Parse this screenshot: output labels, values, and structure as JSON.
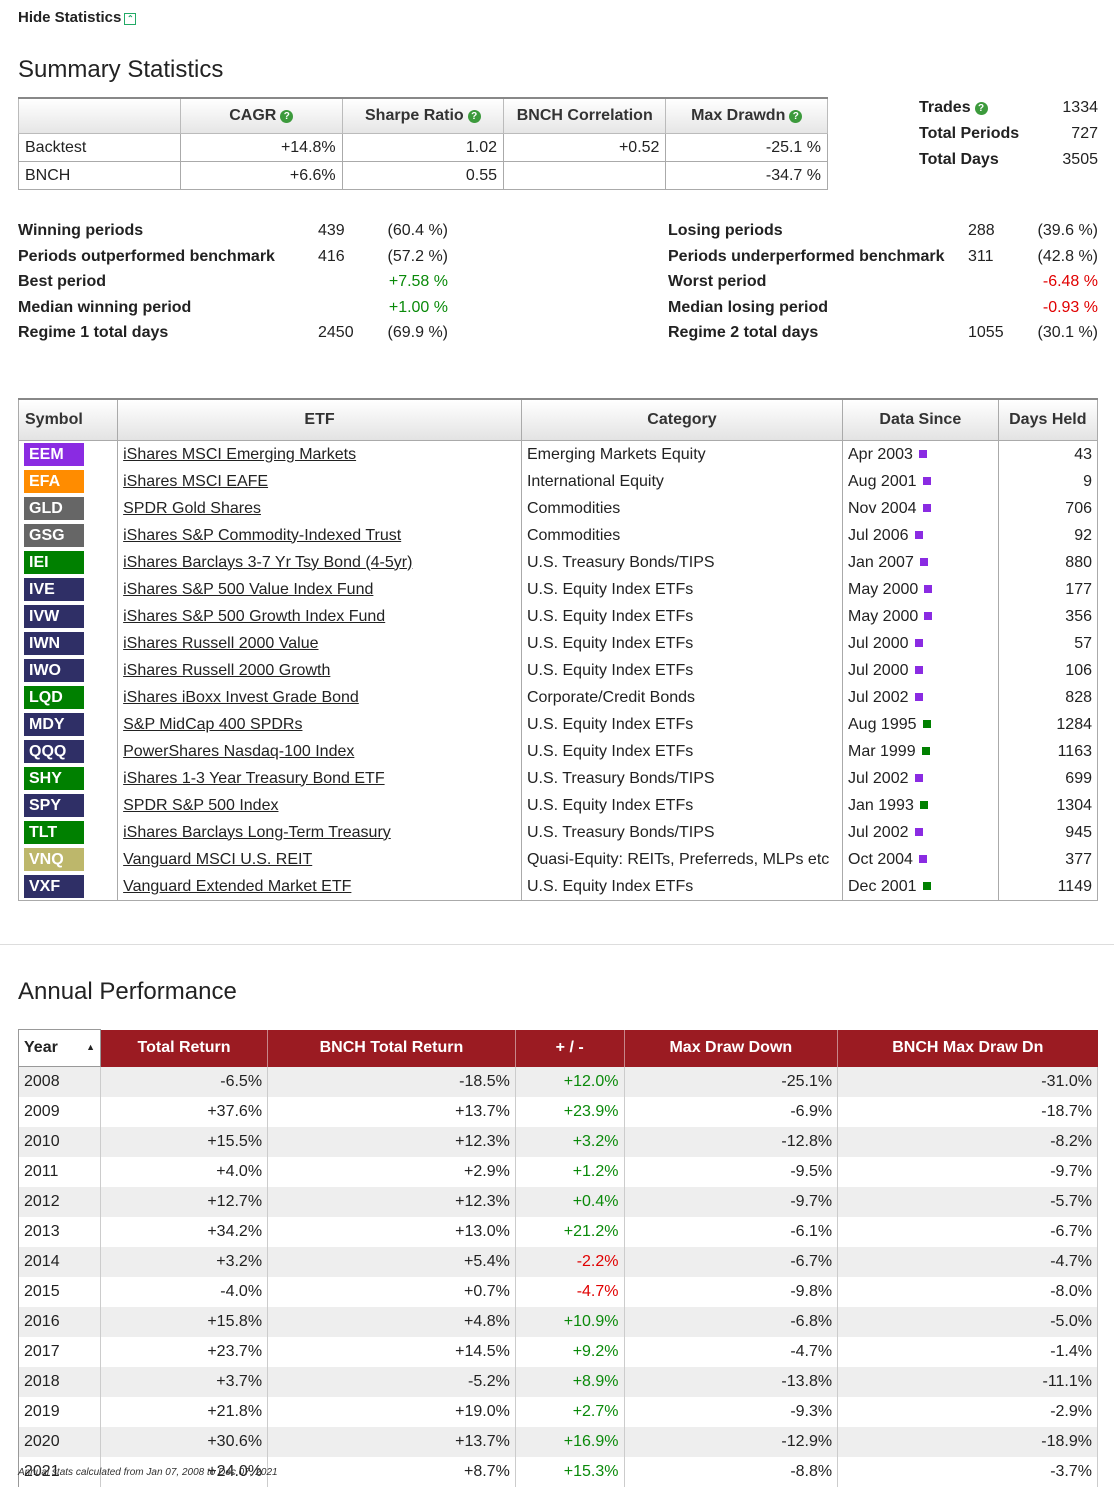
{
  "toggle_label": "Hide Statistics",
  "summary_title": "Summary Statistics",
  "summary_table": {
    "headers": [
      "",
      "CAGR",
      "Sharpe Ratio",
      "BNCH Correlation",
      "Max Drawdn"
    ],
    "rows": [
      [
        "Backtest",
        "+14.8%",
        "1.02",
        "+0.52",
        "-25.1 %"
      ],
      [
        "BNCH",
        "+6.6%",
        "0.55",
        "",
        "-34.7 %"
      ]
    ]
  },
  "side_stats": [
    {
      "label": "Trades",
      "value": "1334",
      "help": true
    },
    {
      "label": "Total Periods",
      "value": "727",
      "help": false
    },
    {
      "label": "Total Days",
      "value": "3505",
      "help": false
    }
  ],
  "left_stats": [
    {
      "label": "Winning periods",
      "value": "439",
      "pct": "(60.4 %)"
    },
    {
      "label": "Periods outperformed benchmark",
      "value": "416",
      "pct": "(57.2 %)"
    },
    {
      "label": "Best period",
      "value": "",
      "pct": "+7.58 %"
    },
    {
      "label": "Median winning period",
      "value": "",
      "pct": "+1.00 %"
    },
    {
      "label": "Regime 1 total days",
      "value": "2450",
      "pct": "(69.9 %)"
    }
  ],
  "right_stats": [
    {
      "label": "Losing periods",
      "value": "288",
      "pct": "(39.6 %)"
    },
    {
      "label": "Periods underperformed benchmark",
      "value": "311",
      "pct": "(42.8 %)"
    },
    {
      "label": "Worst period",
      "value": "",
      "pct": "-6.48 %"
    },
    {
      "label": "Median losing period",
      "value": "",
      "pct": "-0.93 %"
    },
    {
      "label": "Regime 2 total days",
      "value": "1055",
      "pct": "(30.1 %)"
    }
  ],
  "etf_table": {
    "headers": [
      "Symbol",
      "ETF",
      "Category",
      "Data Since",
      "Days Held"
    ],
    "rows": [
      {
        "symbol": "EEM",
        "color": "#8a2be2",
        "name": "iShares MSCI Emerging Markets",
        "category": "Emerging Markets Equity",
        "since": "Apr 2003",
        "marker": "#8a2be2",
        "days": "43"
      },
      {
        "symbol": "EFA",
        "color": "#ff8c00",
        "name": "iShares MSCI EAFE",
        "category": "International Equity",
        "since": "Aug 2001",
        "marker": "#8a2be2",
        "days": "9"
      },
      {
        "symbol": "GLD",
        "color": "#666666",
        "name": "SPDR Gold Shares",
        "category": "Commodities",
        "since": "Nov 2004",
        "marker": "#8a2be2",
        "days": "706"
      },
      {
        "symbol": "GSG",
        "color": "#666666",
        "name": "iShares S&P Commodity-Indexed Trust",
        "category": "Commodities",
        "since": "Jul 2006",
        "marker": "#8a2be2",
        "days": "92"
      },
      {
        "symbol": "IEI",
        "color": "#008000",
        "name": "iShares Barclays 3-7 Yr Tsy Bond (4-5yr)",
        "category": "U.S. Treasury Bonds/TIPS",
        "since": "Jan 2007",
        "marker": "#8a2be2",
        "days": "880"
      },
      {
        "symbol": "IVE",
        "color": "#2f2f66",
        "name": "iShares S&P 500 Value Index Fund",
        "category": "U.S. Equity Index ETFs",
        "since": "May 2000",
        "marker": "#8a2be2",
        "days": "177"
      },
      {
        "symbol": "IVW",
        "color": "#2f2f66",
        "name": "iShares S&P 500 Growth Index Fund",
        "category": "U.S. Equity Index ETFs",
        "since": "May 2000",
        "marker": "#8a2be2",
        "days": "356"
      },
      {
        "symbol": "IWN",
        "color": "#2f2f66",
        "name": "iShares Russell 2000 Value",
        "category": "U.S. Equity Index ETFs",
        "since": "Jul 2000",
        "marker": "#8a2be2",
        "days": "57"
      },
      {
        "symbol": "IWO",
        "color": "#2f2f66",
        "name": "iShares Russell 2000 Growth",
        "category": "U.S. Equity Index ETFs",
        "since": "Jul 2000",
        "marker": "#8a2be2",
        "days": "106"
      },
      {
        "symbol": "LQD",
        "color": "#008000",
        "name": "iShares iBoxx Invest Grade Bond",
        "category": "Corporate/Credit Bonds",
        "since": "Jul 2002",
        "marker": "#8a2be2",
        "days": "828"
      },
      {
        "symbol": "MDY",
        "color": "#2f2f66",
        "name": "S&P MidCap 400 SPDRs",
        "category": "U.S. Equity Index ETFs",
        "since": "Aug 1995",
        "marker": "#008000",
        "days": "1284"
      },
      {
        "symbol": "QQQ",
        "color": "#2f2f66",
        "name": "PowerShares Nasdaq-100 Index",
        "category": "U.S. Equity Index ETFs",
        "since": "Mar 1999",
        "marker": "#008000",
        "days": "1163"
      },
      {
        "symbol": "SHY",
        "color": "#008000",
        "name": "iShares 1-3 Year Treasury Bond ETF",
        "category": "U.S. Treasury Bonds/TIPS",
        "since": "Jul 2002",
        "marker": "#8a2be2",
        "days": "699"
      },
      {
        "symbol": "SPY",
        "color": "#2f2f66",
        "name": "SPDR S&P 500 Index",
        "category": "U.S. Equity Index ETFs",
        "since": "Jan 1993",
        "marker": "#008000",
        "days": "1304"
      },
      {
        "symbol": "TLT",
        "color": "#008000",
        "name": "iShares Barclays Long-Term Treasury",
        "category": "U.S. Treasury Bonds/TIPS",
        "since": "Jul 2002",
        "marker": "#8a2be2",
        "days": "945"
      },
      {
        "symbol": "VNQ",
        "color": "#bdb76b",
        "name": "Vanguard MSCI U.S. REIT",
        "category": "Quasi-Equity: REITs, Preferreds, MLPs etc",
        "since": "Oct 2004",
        "marker": "#8a2be2",
        "days": "377"
      },
      {
        "symbol": "VXF",
        "color": "#2f2f66",
        "name": "Vanguard Extended Market ETF",
        "category": "U.S. Equity Index ETFs",
        "since": "Dec 2001",
        "marker": "#008000",
        "days": "1149"
      }
    ]
  },
  "annual_title": "Annual Performance",
  "annual_table": {
    "headers": [
      "Year",
      "Total Return",
      "BNCH Total Return",
      "+ / -",
      "Max Draw Down",
      "BNCH Max Draw Dn"
    ],
    "rows": [
      [
        "2008",
        "-6.5%",
        "-18.5%",
        "+12.0%",
        "-25.1%",
        "-31.0%"
      ],
      [
        "2009",
        "+37.6%",
        "+13.7%",
        "+23.9%",
        "-6.9%",
        "-18.7%"
      ],
      [
        "2010",
        "+15.5%",
        "+12.3%",
        "+3.2%",
        "-12.8%",
        "-8.2%"
      ],
      [
        "2011",
        "+4.0%",
        "+2.9%",
        "+1.2%",
        "-9.5%",
        "-9.7%"
      ],
      [
        "2012",
        "+12.7%",
        "+12.3%",
        "+0.4%",
        "-9.7%",
        "-5.7%"
      ],
      [
        "2013",
        "+34.2%",
        "+13.0%",
        "+21.2%",
        "-6.1%",
        "-6.7%"
      ],
      [
        "2014",
        "+3.2%",
        "+5.4%",
        "-2.2%",
        "-6.7%",
        "-4.7%"
      ],
      [
        "2015",
        "-4.0%",
        "+0.7%",
        "-4.7%",
        "-9.8%",
        "-8.0%"
      ],
      [
        "2016",
        "+15.8%",
        "+4.8%",
        "+10.9%",
        "-6.8%",
        "-5.0%"
      ],
      [
        "2017",
        "+23.7%",
        "+14.5%",
        "+9.2%",
        "-4.7%",
        "-1.4%"
      ],
      [
        "2018",
        "+3.7%",
        "-5.2%",
        "+8.9%",
        "-13.8%",
        "-11.1%"
      ],
      [
        "2019",
        "+21.8%",
        "+19.0%",
        "+2.7%",
        "-9.3%",
        "-2.9%"
      ],
      [
        "2020",
        "+30.6%",
        "+13.7%",
        "+16.9%",
        "-12.9%",
        "-18.9%"
      ],
      [
        "2021",
        "+24.0%",
        "+8.7%",
        "+15.3%",
        "-8.8%",
        "-3.7%"
      ]
    ]
  },
  "footnote": "Annual stats calculated from Jan 07, 2008 to Dec 07, 2021",
  "colors": {
    "header_red": "#9b1b22",
    "positive": "#0a8a0a",
    "negative": "#e00000"
  }
}
